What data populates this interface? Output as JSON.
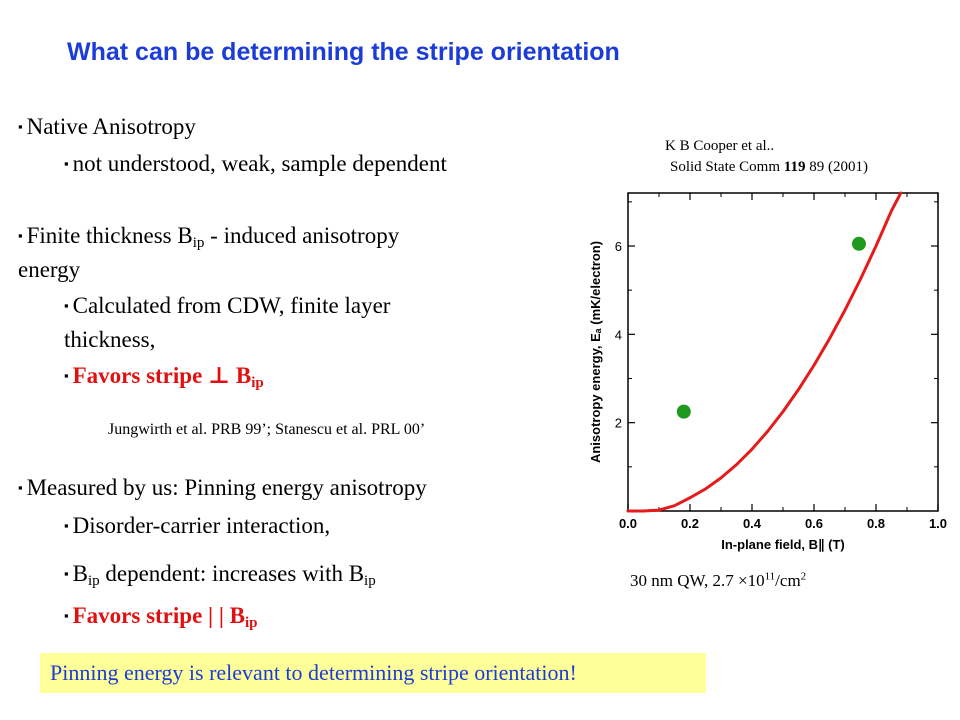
{
  "title": "What can be determining the stripe orientation",
  "bullets": {
    "native": "Native Anisotropy",
    "native_sub": "not understood, weak, sample dependent",
    "finite_a": "Finite thickness B",
    "finite_sub": "ip",
    "finite_b": " - induced anisotropy",
    "finite_c": "energy",
    "calc_a": "Calculated from CDW, finite layer",
    "calc_b": "thickness,",
    "favors_perp": "Favors stripe ⊥ B",
    "ip": "ip",
    "cite": "Jungwirth et al.  PRB 99’; Stanescu et al. PRL 00’",
    "measured": "Measured by us:  Pinning energy anisotropy",
    "disorder": "Disorder-carrier interaction,",
    "bdep_a": "B",
    "bdep_b": " dependent: increases with B",
    "favors_par": "Favors stripe | |  B"
  },
  "reference": {
    "line1": "K B Cooper et al..",
    "line2_a": "Solid State Comm ",
    "line2_vol": "119",
    "line2_b": " 89 (2001)"
  },
  "caption": {
    "a": "30 nm QW,  2.7 ×10",
    "exp": "11",
    "b": "/cm",
    "exp2": "2"
  },
  "banner": "Pinning energy is relevant to determining stripe orientation!",
  "chart_data": {
    "type": "line",
    "xlabel": "In-plane field, B∥ (T)",
    "ylabel": "Anisotropy energy, Eₐ  (mK/electron)",
    "xlim": [
      0.0,
      1.0
    ],
    "ylim": [
      0,
      7.2
    ],
    "x_ticks": [
      "0.0",
      "0.2",
      "0.4",
      "0.6",
      "0.8",
      "1.0"
    ],
    "y_ticks": [
      "2",
      "4",
      "6"
    ],
    "series": [
      {
        "type": "line",
        "color": "#e51b1b",
        "x": [
          0.0,
          0.05,
          0.1,
          0.15,
          0.2,
          0.25,
          0.3,
          0.35,
          0.4,
          0.45,
          0.5,
          0.55,
          0.6,
          0.65,
          0.7,
          0.75,
          0.8,
          0.85,
          0.88
        ],
        "y": [
          0.0,
          0.0,
          0.02,
          0.12,
          0.3,
          0.5,
          0.75,
          1.05,
          1.4,
          1.8,
          2.25,
          2.75,
          3.3,
          3.9,
          4.55,
          5.25,
          6.0,
          6.8,
          7.2
        ]
      },
      {
        "type": "scatter",
        "color": "#1f9a1f",
        "x": [
          0.18,
          0.745
        ],
        "y": [
          2.25,
          6.05
        ]
      }
    ]
  }
}
